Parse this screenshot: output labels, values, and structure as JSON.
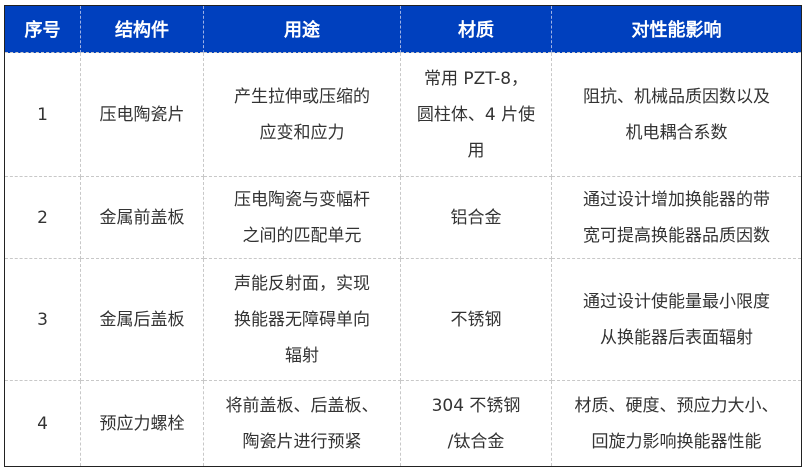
{
  "header": {
    "cols": [
      "序号",
      "结构件",
      "用途",
      "材质",
      "对性能影响"
    ],
    "color": "#0040be"
  },
  "rows": [
    {
      "no": "1",
      "part": "压电陶瓷片",
      "use": "产生拉伸或压缩的\n应变和应力",
      "material": "常用 PZT-8，\n圆柱体、4 片使\n用",
      "effect": "阻抗、机械品质因数以及\n机电耦合系数"
    },
    {
      "no": "2",
      "part": "金属前盖板",
      "use": "压电陶瓷与变幅杆\n之间的匹配单元",
      "material": "铝合金",
      "effect": "通过设计增加换能器的带\n宽可提高换能器品质因数"
    },
    {
      "no": "3",
      "part": "金属后盖板",
      "use": "声能反射面，实现\n换能器无障碍单向\n辐射",
      "material": "不锈钢",
      "effect": "通过设计使能量最小限度\n从换能器后表面辐射"
    },
    {
      "no": "4",
      "part": "预应力螺栓",
      "use": "将前盖板、后盖板、\n陶瓷片进行预紧",
      "material": "304 不锈钢\n/钛合金",
      "effect": "材质、硬度、预应力大小、\n回旋力影响换能器性能"
    }
  ]
}
